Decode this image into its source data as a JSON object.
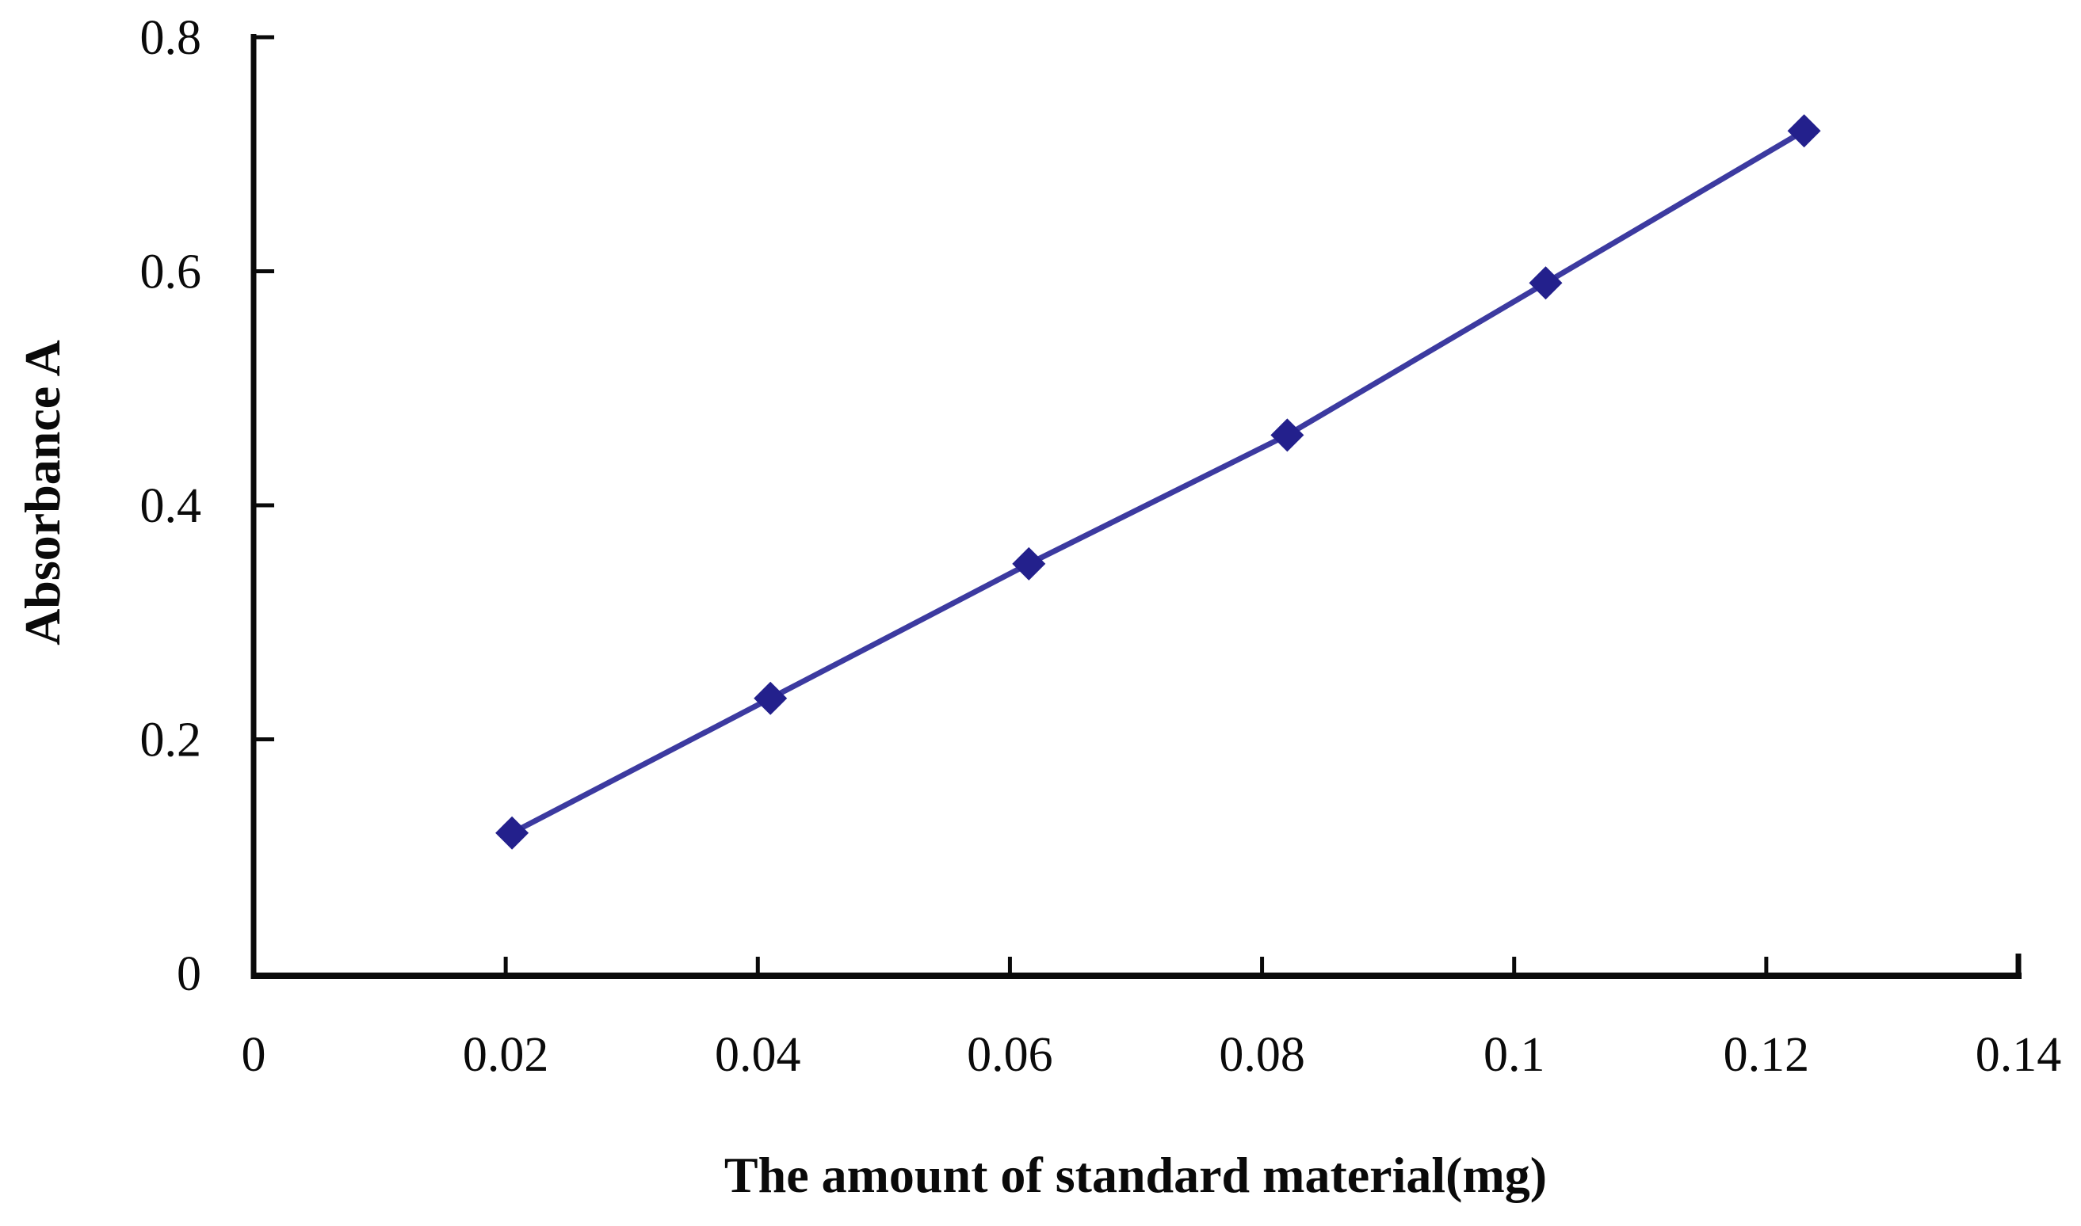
{
  "figure": {
    "background_color": "#ffffff",
    "axis_color": "#0a0a0a"
  },
  "chart_data": {
    "type": "line",
    "title": "",
    "xlabel": "The amount of standard material(mg)",
    "ylabel": "Absorbance A",
    "xlim": [
      0,
      0.14
    ],
    "ylim": [
      0,
      0.8
    ],
    "grid": false,
    "legend": false,
    "x_ticks": {
      "values": [
        0,
        0.02,
        0.04,
        0.06,
        0.08,
        0.1,
        0.12,
        0.14
      ],
      "labels": [
        "0",
        "0.02",
        "0.04",
        "0.06",
        "0.08",
        "0.1",
        "0.12",
        "0.14"
      ]
    },
    "y_ticks": {
      "values": [
        0,
        0.2,
        0.4,
        0.6,
        0.8
      ],
      "labels": [
        "0",
        "0.2",
        "0.4",
        "0.6",
        "0.8"
      ]
    },
    "series": [
      {
        "x": [
          0.0205,
          0.041,
          0.0615,
          0.082,
          0.1025,
          0.123
        ],
        "y": [
          0.12,
          0.235,
          0.35,
          0.46,
          0.59,
          0.72
        ],
        "marker": "diamond",
        "line_color": "#3C3AA0",
        "marker_color": "#23208C"
      }
    ]
  }
}
